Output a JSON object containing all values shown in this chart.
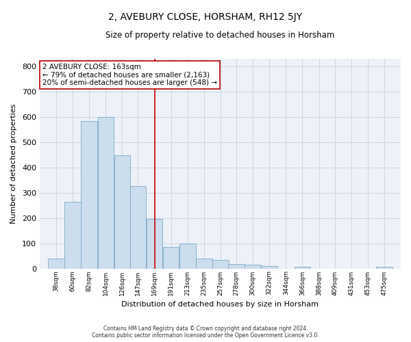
{
  "title": "2, AVEBURY CLOSE, HORSHAM, RH12 5JY",
  "subtitle": "Size of property relative to detached houses in Horsham",
  "xlabel": "Distribution of detached houses by size in Horsham",
  "ylabel": "Number of detached properties",
  "categories": [
    "38sqm",
    "60sqm",
    "82sqm",
    "104sqm",
    "126sqm",
    "147sqm",
    "169sqm",
    "191sqm",
    "213sqm",
    "235sqm",
    "257sqm",
    "278sqm",
    "300sqm",
    "322sqm",
    "344sqm",
    "366sqm",
    "388sqm",
    "409sqm",
    "431sqm",
    "453sqm",
    "475sqm"
  ],
  "values": [
    40,
    265,
    582,
    598,
    447,
    327,
    195,
    86,
    100,
    40,
    35,
    17,
    14,
    10,
    0,
    8,
    0,
    0,
    0,
    0,
    6
  ],
  "bar_color": "#ccdded",
  "bar_edge_color": "#7aaac8",
  "grid_color": "#c5d2de",
  "background_color": "#eef2f8",
  "annotation_text_line1": "2 AVEBURY CLOSE: 163sqm",
  "annotation_text_line2": "← 79% of detached houses are smaller (2,163)",
  "annotation_text_line3": "20% of semi-detached houses are larger (548) →",
  "property_line_x": 169,
  "xlim_left": 16,
  "xlim_right": 497,
  "ylim_max": 830,
  "bin_width": 22,
  "yticks": [
    0,
    100,
    200,
    300,
    400,
    500,
    600,
    700,
    800
  ],
  "footnote_line1": "Contains HM Land Registry data © Crown copyright and database right 2024.",
  "footnote_line2": "Contains public sector information licensed under the Open Government Licence v3.0."
}
